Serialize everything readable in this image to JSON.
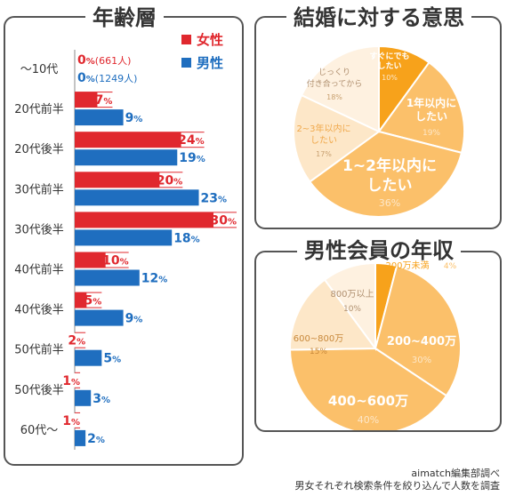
{
  "footer": {
    "line1": "aimatch編集部調べ",
    "line2": "男女それぞれ検索条件を絞り込んで人数を調査"
  },
  "colors": {
    "female": "#e0282e",
    "male": "#1f6ebf",
    "pie_dark": "#f7a21b",
    "pie_mid": "#fbc06a",
    "pie_light": "#fcd8a6",
    "pie_lighter": "#fde7c8",
    "pie_lightest": "#fef1e0"
  },
  "chart_data": [
    {
      "type": "bar",
      "title": "年齢層",
      "categories": [
        "〜10代",
        "20代前半",
        "20代後半",
        "30代前半",
        "30代後半",
        "40代前半",
        "40代後半",
        "50代前半",
        "50代後半",
        "60代〜"
      ],
      "series": [
        {
          "name": "女性",
          "values": [
            0,
            7,
            24,
            20,
            30,
            10,
            5,
            2,
            1,
            1
          ],
          "unit": "%"
        },
        {
          "name": "男性",
          "values": [
            0,
            9,
            19,
            23,
            18,
            12,
            9,
            5,
            3,
            2
          ],
          "unit": "%"
        }
      ],
      "annotations": {
        "female_first": "(661人)",
        "male_first": "(1249人)"
      },
      "xlim": [
        0,
        30
      ]
    },
    {
      "type": "pie",
      "title": "結婚に対する意思",
      "slices": [
        {
          "label": "すぐにでも したい",
          "value": 10
        },
        {
          "label": "1年以内に したい",
          "value": 19
        },
        {
          "label": "1~2年以内に したい",
          "value": 36
        },
        {
          "label": "2~3年以内に したい",
          "value": 17
        },
        {
          "label": "じっくり 付き合ってから",
          "value": 18
        }
      ]
    },
    {
      "type": "pie",
      "title": "男性会員の年収",
      "slices": [
        {
          "label": "200万未満",
          "value": 4
        },
        {
          "label": "200~400万",
          "value": 30
        },
        {
          "label": "400~600万",
          "value": 40
        },
        {
          "label": "600~800万",
          "value": 15
        },
        {
          "label": "800万以上",
          "value": 10
        }
      ]
    }
  ]
}
